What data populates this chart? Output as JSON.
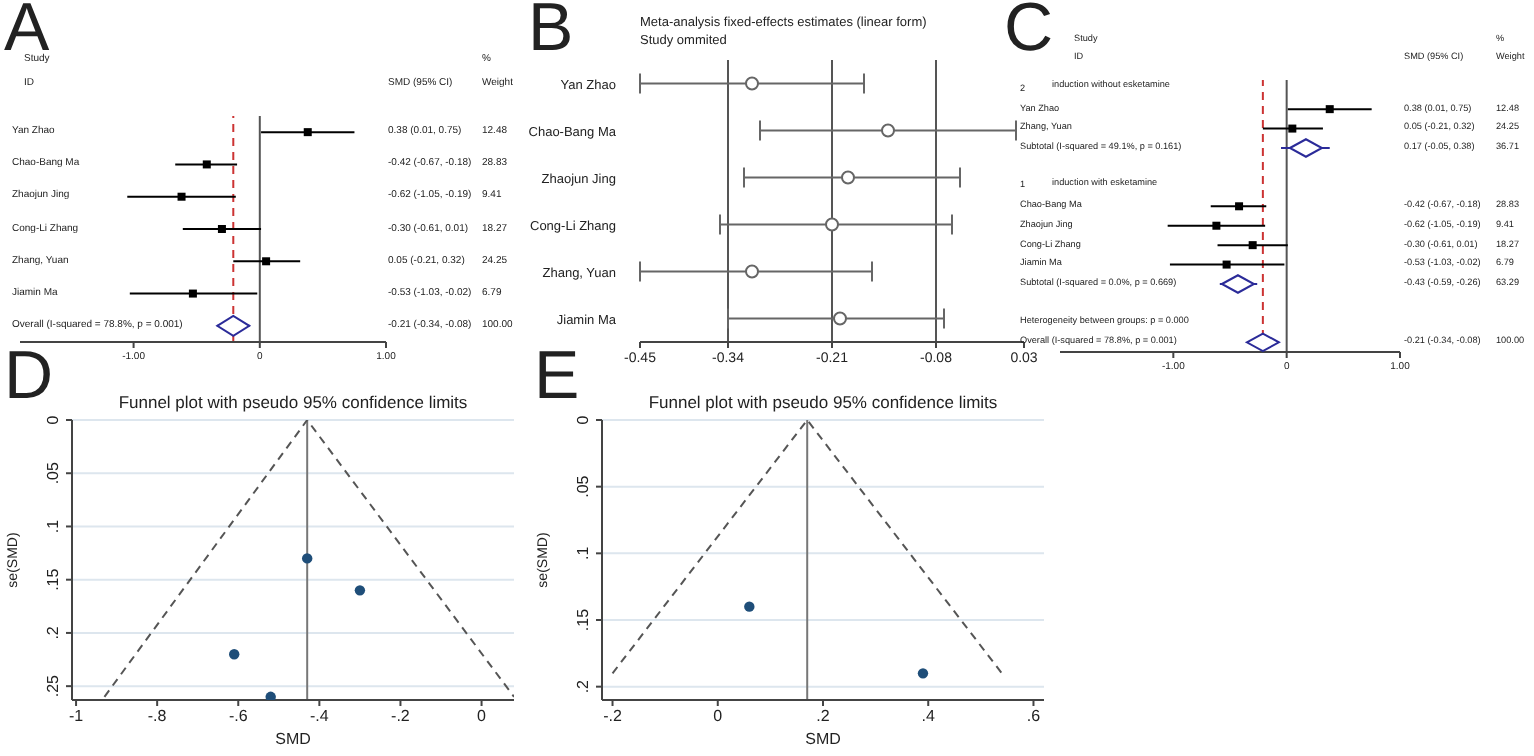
{
  "chart_data": [
    {
      "type": "scatter",
      "orientation": "horizontal",
      "categories": [
        "Yan Zhao",
        "Chao-Bang Ma",
        "Zhaojun Jing",
        "Cong-Li Zhang",
        "Zhang, Yuan",
        "Jiamin Ma",
        "Overall (I-squared = 78.8%, p = 0.001)"
      ],
      "series": [
        {
          "type": "scatter",
          "marker": "square",
          "color": "#000000",
          "values": [
            0.38,
            -0.42,
            -0.62,
            -0.3,
            0.05,
            -0.53,
            null
          ],
          "errors": [
            [
              0.01,
              0.75
            ],
            [
              -0.67,
              -0.18
            ],
            [
              -1.05,
              -0.19
            ],
            [
              -0.61,
              0.01
            ],
            [
              -0.21,
              0.32
            ],
            [
              -1.03,
              -0.02
            ],
            null
          ]
        },
        {
          "type": "scatter",
          "marker": "diamond",
          "color": "#2b2b99",
          "values": [
            null,
            null,
            null,
            null,
            null,
            null,
            -0.21
          ],
          "errors": [
            null,
            null,
            null,
            null,
            null,
            null,
            [
              -0.34,
              -0.08
            ]
          ]
        }
      ],
      "xlim": [
        -1.9,
        1.0
      ],
      "xticks": [
        {
          "value": -1,
          "label": "-1.00"
        },
        0,
        {
          "value": 1,
          "label": "1.00"
        }
      ],
      "ref_lines": [
        {
          "axis": "x",
          "value": 0,
          "color": "#555555"
        },
        {
          "axis": "x",
          "value": -0.21,
          "color": "#cc3333",
          "line_style": "dashed"
        }
      ],
      "annotations": [
        "A",
        "Study",
        "ID",
        "SMD (95% CI)",
        "%",
        "Weight",
        "0.38 (0.01, 0.75)",
        "-0.42 (-0.67, -0.18)",
        "-0.62 (-1.05, -0.19)",
        "-0.30 (-0.61, 0.01)",
        "0.05 (-0.21, 0.32)",
        "-0.53 (-1.03, -0.02)",
        "-0.21 (-0.34, -0.08)",
        "12.48",
        "28.83",
        "9.41",
        "18.27",
        "24.25",
        "6.79",
        "100.00"
      ]
    },
    {
      "type": "scatter",
      "orientation": "horizontal",
      "title": "Meta-analysis fixed-effects estimates (linear form)",
      "subtitle": "Study ommited",
      "categories": [
        "Yan Zhao",
        "Chao-Bang Ma",
        "Zhaojun Jing",
        "Cong-Li Zhang",
        "Zhang, Yuan",
        "Jiamin Ma"
      ],
      "series": [
        {
          "type": "scatter",
          "marker": "circle",
          "color": "#666666",
          "values": [
            -0.31,
            -0.14,
            -0.19,
            -0.21,
            -0.31,
            -0.2
          ],
          "errors": [
            [
              -0.45,
              -0.17
            ],
            [
              -0.3,
              0.02
            ],
            [
              -0.32,
              -0.05
            ],
            [
              -0.35,
              -0.06
            ],
            [
              -0.45,
              -0.16
            ],
            [
              -0.34,
              -0.07
            ]
          ]
        }
      ],
      "xlim": [
        -0.45,
        0.03
      ],
      "xticks": [
        -0.45,
        -0.34,
        -0.21,
        -0.08,
        0.03
      ],
      "ref_lines": [
        {
          "axis": "x",
          "value": -0.34,
          "color": "#555555"
        },
        {
          "axis": "x",
          "value": -0.21,
          "color": "#555555"
        },
        {
          "axis": "x",
          "value": -0.08,
          "color": "#555555"
        }
      ],
      "annotations": [
        "B"
      ]
    },
    {
      "type": "scatter",
      "orientation": "horizontal",
      "categories": [
        "2",
        "Yan Zhao",
        "Zhang, Yuan",
        "Subtotal (I-squared = 49.1%, p = 0.161)",
        null,
        "1",
        "Chao-Bang Ma",
        "Zhaojun Jing",
        "Cong-Li Zhang",
        "Jiamin Ma",
        "Subtotal (I-squared = 0.0%, p = 0.669)",
        null,
        "Heterogeneity between groups: p = 0.000",
        "Overall (I-squared = 78.8%, p = 0.001)"
      ],
      "series": [
        {
          "type": "scatter",
          "marker": "square",
          "color": "#000000",
          "values": [
            null,
            0.38,
            0.05,
            null,
            null,
            null,
            -0.42,
            -0.62,
            -0.3,
            -0.53,
            null,
            null,
            null,
            null
          ],
          "errors": [
            null,
            [
              0.01,
              0.75
            ],
            [
              -0.21,
              0.32
            ],
            null,
            null,
            null,
            [
              -0.67,
              -0.18
            ],
            [
              -1.05,
              -0.19
            ],
            [
              -0.61,
              0.01
            ],
            [
              -1.03,
              -0.02
            ],
            null,
            null,
            null,
            null
          ]
        },
        {
          "type": "scatter",
          "marker": "diamond",
          "color": "#2b2b99",
          "values": [
            null,
            null,
            null,
            0.17,
            null,
            null,
            null,
            null,
            null,
            null,
            -0.43,
            null,
            null,
            -0.21
          ],
          "errors": [
            null,
            null,
            null,
            [
              -0.05,
              0.38
            ],
            null,
            null,
            null,
            null,
            null,
            null,
            [
              -0.59,
              -0.26
            ],
            null,
            null,
            [
              -0.34,
              -0.08
            ]
          ]
        }
      ],
      "xlim": [
        -2,
        1
      ],
      "xticks": [
        {
          "value": -1,
          "label": "-1.00"
        },
        0,
        {
          "value": 1,
          "label": "1.00"
        }
      ],
      "ref_lines": [
        {
          "axis": "x",
          "value": 0,
          "color": "#555555"
        },
        {
          "axis": "x",
          "value": -0.21,
          "color": "#cc3333",
          "line_style": "dashed"
        }
      ],
      "annotations": [
        "C",
        "Study",
        "ID",
        "SMD (95% CI)",
        "%",
        "Weight",
        "0.38 (0.01, 0.75)",
        "0.05 (-0.21, 0.32)",
        "0.17 (-0.05, 0.38)",
        "-0.42 (-0.67, -0.18)",
        "-0.62 (-1.05, -0.19)",
        "-0.30 (-0.61, 0.01)",
        "-0.53 (-1.03, -0.02)",
        "-0.43 (-0.59, -0.26)",
        "-0.21 (-0.34, -0.08)",
        "12.48",
        "24.25",
        "36.71",
        "28.83",
        "9.41",
        "18.27",
        "6.79",
        "63.29",
        "100.00",
        "induction without esketamine",
        "induction with esketamine"
      ]
    },
    {
      "type": "scatter",
      "title": "Funnel plot with pseudo 95% confidence limits",
      "xlabel": "SMD",
      "ylabel": "se(SMD)",
      "series": [
        {
          "type": "scatter",
          "marker": "circle",
          "color": "#1f4e79",
          "x": [
            -0.43,
            -0.3,
            -0.61,
            -0.52
          ],
          "values": [
            0.13,
            0.16,
            0.22,
            0.26
          ]
        },
        {
          "type": "line",
          "marker": "none",
          "line_style": "dashed",
          "color": "#555555",
          "x": [
            -0.93,
            -0.43,
            0.08
          ],
          "values": [
            0.26,
            0,
            0.26
          ]
        }
      ],
      "xlim": [
        -1.01,
        0.08
      ],
      "xticks": [
        -1,
        {
          "value": -0.8,
          "label": "-.8"
        },
        {
          "value": -0.6,
          "label": "-.6"
        },
        {
          "value": -0.4,
          "label": "-.4"
        },
        {
          "value": -0.2,
          "label": "-.2"
        },
        0
      ],
      "ylim": [
        0.263,
        0
      ],
      "yticks": [
        0,
        {
          "value": 0.05,
          "label": ".05"
        },
        {
          "value": 0.1,
          "label": ".1"
        },
        {
          "value": 0.15,
          "label": ".15"
        },
        {
          "value": 0.2,
          "label": ".2"
        },
        {
          "value": 0.25,
          "label": ".25"
        }
      ],
      "grid": "y",
      "ref_lines": [
        {
          "axis": "x",
          "value": -0.43,
          "color": "#777777"
        }
      ],
      "annotations": [
        "D"
      ]
    },
    {
      "type": "scatter",
      "title": "Funnel plot with pseudo 95% confidence limits",
      "xlabel": "SMD",
      "ylabel": "se(SMD)",
      "series": [
        {
          "type": "scatter",
          "marker": "circle",
          "color": "#1f4e79",
          "x": [
            0.06,
            0.39
          ],
          "values": [
            0.14,
            0.19
          ]
        },
        {
          "type": "line",
          "marker": "none",
          "line_style": "dashed",
          "color": "#555555",
          "x": [
            -0.2,
            0.17,
            0.54
          ],
          "values": [
            0.19,
            0,
            0.19
          ]
        }
      ],
      "xlim": [
        -0.22,
        0.62
      ],
      "xticks": [
        {
          "value": -0.2,
          "label": "-.2"
        },
        0,
        {
          "value": 0.2,
          "label": ".2"
        },
        {
          "value": 0.4,
          "label": ".4"
        },
        {
          "value": 0.6,
          "label": ".6"
        }
      ],
      "ylim": [
        0.21,
        0
      ],
      "yticks": [
        0,
        {
          "value": 0.05,
          "label": ".05"
        },
        {
          "value": 0.1,
          "label": ".1"
        },
        {
          "value": 0.15,
          "label": ".15"
        },
        {
          "value": 0.2,
          "label": ".2"
        }
      ],
      "grid": "y",
      "ref_lines": [
        {
          "axis": "x",
          "value": 0.17,
          "color": "#777777"
        }
      ],
      "annotations": [
        "E"
      ]
    }
  ]
}
